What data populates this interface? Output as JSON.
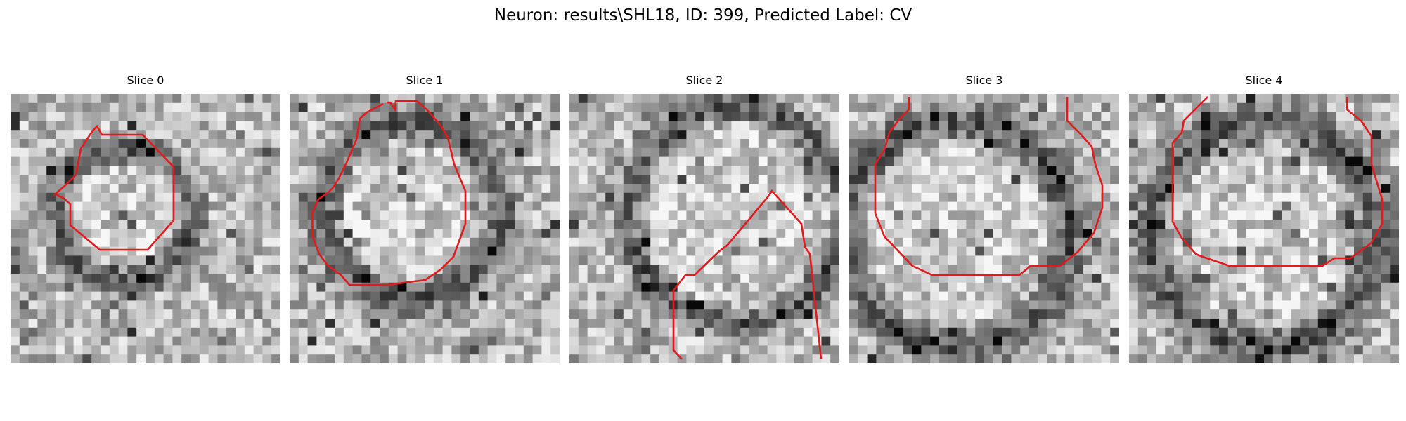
{
  "figure": {
    "title": "Neuron: results\\SHL18, ID: 399, Predicted Label: CV"
  },
  "colors": {
    "contour": "#e31a1c",
    "background": "#ffffff"
  },
  "panels": [
    {
      "title": "Slice 0",
      "seed": 11,
      "dark_ring": [
        0.42,
        0.45,
        0.25,
        0.05
      ]
    },
    {
      "title": "Slice 1",
      "seed": 23,
      "dark_ring": [
        0.45,
        0.43,
        0.33,
        0.06
      ]
    },
    {
      "title": "Slice 2",
      "seed": 37,
      "dark_ring": [
        0.62,
        0.45,
        0.4,
        0.05
      ]
    },
    {
      "title": "Slice 3",
      "seed": 51,
      "dark_ring": [
        0.4,
        0.52,
        0.42,
        0.07
      ]
    },
    {
      "title": "Slice 4",
      "seed": 67,
      "dark_ring": [
        0.5,
        0.52,
        0.42,
        0.07
      ]
    }
  ]
}
